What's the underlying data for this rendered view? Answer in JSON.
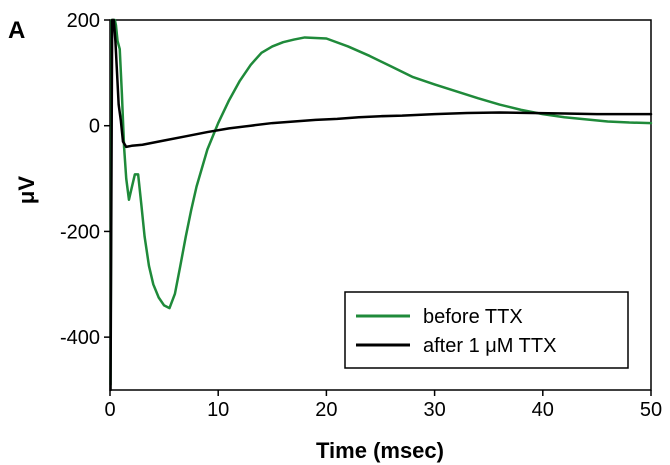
{
  "panel_label": "A",
  "chart_data": {
    "type": "line",
    "xlabel": "Time (msec)",
    "ylabel": "μV",
    "xlim": [
      0,
      50
    ],
    "ylim": [
      -500,
      200
    ],
    "x_ticks": [
      0,
      10,
      20,
      30,
      40,
      50
    ],
    "y_ticks": [
      200,
      0,
      -200,
      -400
    ],
    "x_tick_labels": [
      "0",
      "10",
      "20",
      "30",
      "40",
      "50"
    ],
    "y_tick_labels": [
      "200",
      "0",
      "-200",
      "-400"
    ],
    "grid": false,
    "legend_position": "bottom-right",
    "series": [
      {
        "name": "before TTX",
        "color": "#1f8a3a",
        "x": [
          0.05,
          0.15,
          0.3,
          0.45,
          0.55,
          0.7,
          0.9,
          1.1,
          1.3,
          1.5,
          1.75,
          2.0,
          2.3,
          2.6,
          2.9,
          3.2,
          3.6,
          4.0,
          4.5,
          5.0,
          5.5,
          6.0,
          6.5,
          7.0,
          7.5,
          8.0,
          9.0,
          10.0,
          11.0,
          12.0,
          13.0,
          14.0,
          15.0,
          16.0,
          17.0,
          18.0,
          19.0,
          20.0,
          22.0,
          24.0,
          26.0,
          28.0,
          30.0,
          32.0,
          34.0,
          36.0,
          38.0,
          40.0,
          42.0,
          44.0,
          46.0,
          48.0,
          50.0
        ],
        "y": [
          -490,
          200,
          200,
          200,
          190,
          160,
          145,
          60,
          -40,
          -100,
          -140,
          -118,
          -92,
          -92,
          -150,
          -210,
          -265,
          -300,
          -325,
          -340,
          -345,
          -318,
          -265,
          -210,
          -160,
          -115,
          -45,
          5,
          48,
          85,
          115,
          138,
          150,
          158,
          163,
          167,
          166,
          165,
          150,
          132,
          112,
          92,
          78,
          65,
          52,
          40,
          30,
          22,
          16,
          12,
          8,
          6,
          5
        ]
      },
      {
        "name": "after 1 μM TTX",
        "color": "#000000",
        "x": [
          0.05,
          0.2,
          0.35,
          0.5,
          0.65,
          0.8,
          1.0,
          1.2,
          1.5,
          2.0,
          3.0,
          4.0,
          5.0,
          7.0,
          9.0,
          11.0,
          13.0,
          15.0,
          17.0,
          19.0,
          21.0,
          23.0,
          25.0,
          27.0,
          30.0,
          33.0,
          36.0,
          39.0,
          42.0,
          45.0,
          48.0,
          50.0
        ],
        "y": [
          -500,
          200,
          200,
          160,
          100,
          40,
          10,
          -30,
          -40,
          -38,
          -36,
          -32,
          -28,
          -20,
          -12,
          -5,
          0,
          5,
          8,
          11,
          13,
          16,
          18,
          19,
          22,
          24,
          25,
          24,
          23,
          22,
          22,
          22
        ]
      }
    ]
  }
}
